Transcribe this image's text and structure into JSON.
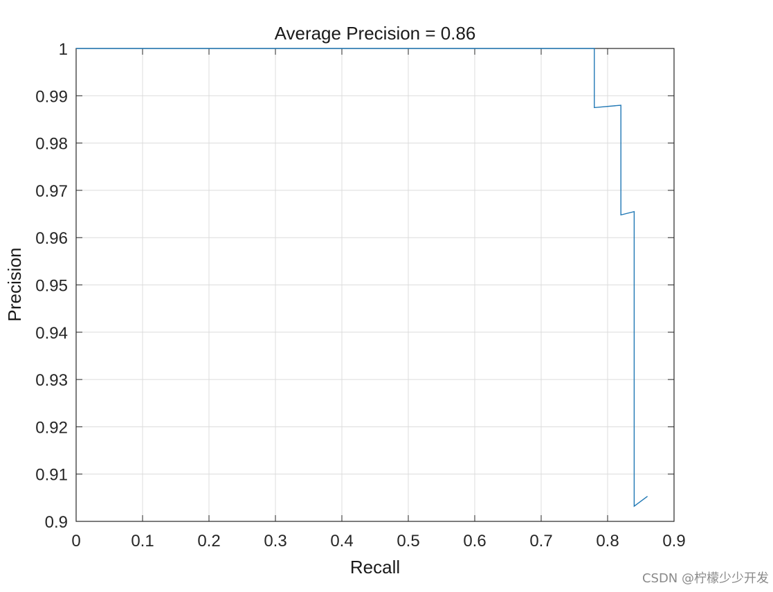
{
  "chart_data": {
    "type": "line",
    "title": "Average Precision = 0.86",
    "xlabel": "Recall",
    "ylabel": "Precision",
    "xlim": [
      0,
      0.9
    ],
    "ylim": [
      0.9,
      1
    ],
    "xticks": [
      0,
      0.1,
      0.2,
      0.3,
      0.4,
      0.5,
      0.6,
      0.7,
      0.8,
      0.9
    ],
    "xtick_labels": [
      "0",
      "0.1",
      "0.2",
      "0.3",
      "0.4",
      "0.5",
      "0.6",
      "0.7",
      "0.8",
      "0.9"
    ],
    "yticks": [
      0.9,
      0.91,
      0.92,
      0.93,
      0.94,
      0.95,
      0.96,
      0.97,
      0.98,
      0.99,
      1
    ],
    "ytick_labels": [
      "0.9",
      "0.91",
      "0.92",
      "0.93",
      "0.94",
      "0.95",
      "0.96",
      "0.97",
      "0.98",
      "0.99",
      "1"
    ],
    "grid": true,
    "series": [
      {
        "color": "#1f77b4",
        "x": [
          0,
          0.78,
          0.78,
          0.82,
          0.82,
          0.84,
          0.84,
          0.86
        ],
        "y": [
          1,
          1,
          0.9875,
          0.988,
          0.9648,
          0.9655,
          0.9032,
          0.9053
        ]
      }
    ]
  },
  "watermark": "CSDN @柠檬少少开发"
}
